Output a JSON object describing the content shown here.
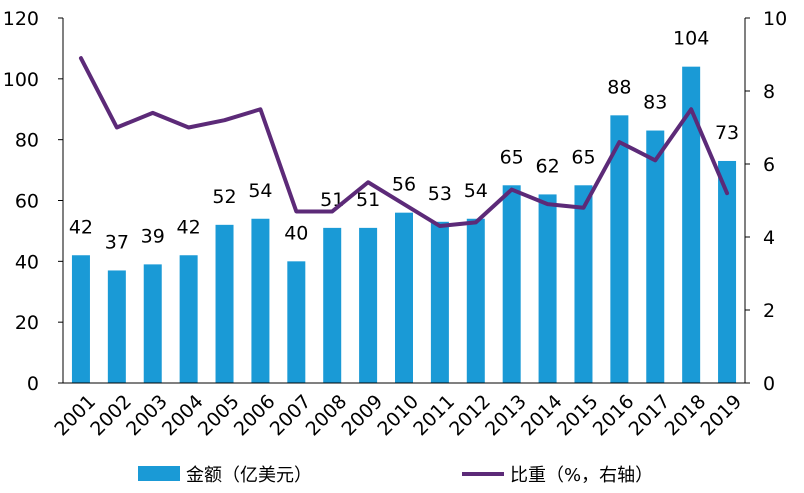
{
  "chart_data": {
    "type": "bar",
    "categories": [
      "2001",
      "2002",
      "2003",
      "2004",
      "2005",
      "2006",
      "2007",
      "2008",
      "2009",
      "2010",
      "2011",
      "2012",
      "2013",
      "2014",
      "2015",
      "2016",
      "2017",
      "2018",
      "2019"
    ],
    "series": [
      {
        "name": "金额（亿美元）",
        "type": "bar",
        "axis": "left",
        "color": "#1a9ad6",
        "values": [
          42,
          37,
          39,
          42,
          52,
          54,
          40,
          51,
          51,
          56,
          53,
          54,
          65,
          62,
          65,
          88,
          83,
          104,
          73
        ]
      },
      {
        "name": "比重（%，右轴）",
        "type": "line",
        "axis": "right",
        "color": "#5c2a78",
        "values": [
          8.9,
          7.0,
          7.4,
          7.0,
          7.2,
          7.5,
          4.7,
          4.7,
          5.5,
          4.9,
          4.3,
          4.4,
          5.3,
          4.9,
          4.8,
          6.6,
          6.1,
          7.5,
          5.2
        ]
      }
    ],
    "data_labels": [
      "42",
      "37",
      "39",
      "42",
      "52",
      "54",
      "40",
      "51",
      "51",
      "56",
      "53",
      "54",
      "65",
      "62",
      "65",
      "88",
      "83",
      "104",
      "73"
    ],
    "y_left": {
      "min": 0,
      "max": 120,
      "ticks": [
        "0",
        "20",
        "40",
        "60",
        "80",
        "100",
        "120"
      ]
    },
    "y_right": {
      "min": 0,
      "max": 10,
      "ticks": [
        "0",
        "2",
        "4",
        "6",
        "8",
        "10"
      ]
    },
    "title": "",
    "xlabel": "",
    "ylabel": "",
    "grid": false,
    "legend_position": "bottom"
  }
}
